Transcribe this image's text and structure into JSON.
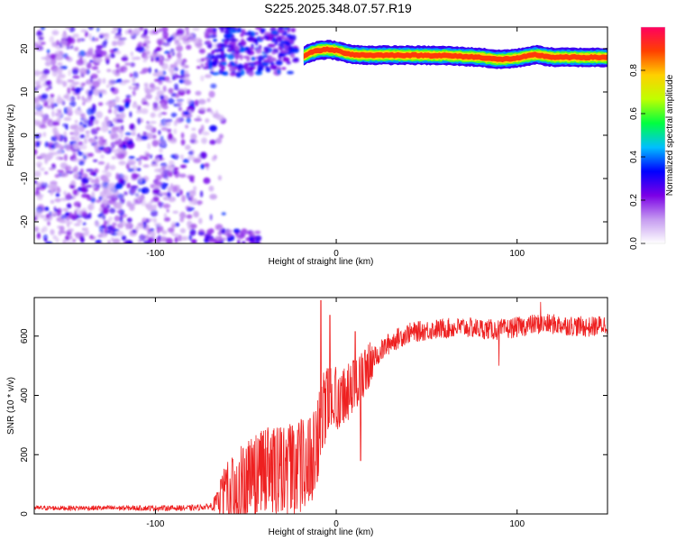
{
  "title": "S225.2025.348.07.57.R19",
  "chart_data": [
    {
      "type": "heatmap",
      "name": "spectrogram",
      "xlabel": "Height of straight line (km)",
      "ylabel": "Frequency (Hz)",
      "xlim": [
        -167,
        150
      ],
      "ylim": [
        -25,
        25
      ],
      "x_ticks": [
        -100,
        0,
        100
      ],
      "x_tick_labels": [
        "-100",
        "0",
        "100"
      ],
      "y_ticks": [
        -20,
        -10,
        0,
        10,
        20
      ],
      "y_tick_labels": [
        "-20",
        "-10",
        "0",
        "10",
        "20"
      ],
      "ridge": {
        "description_points_x": [
          -18,
          -15,
          -10,
          -5,
          0,
          5,
          10,
          20,
          40,
          60,
          80,
          90,
          100,
          110,
          120,
          150
        ],
        "description_points_y": [
          18.3,
          19.0,
          19.6,
          19.8,
          19.6,
          19.0,
          18.6,
          18.5,
          18.5,
          18.4,
          18.0,
          17.5,
          17.8,
          18.6,
          18.0,
          18.0
        ]
      },
      "colorbar": {
        "label": "Normalized spectral amplitude",
        "range": [
          0,
          1
        ],
        "ticks": [
          0.0,
          0.2,
          0.4,
          0.6,
          0.8
        ],
        "tick_labels": [
          "0.0",
          "0.2",
          "0.4",
          "0.6",
          "0.8"
        ],
        "colors": [
          "#ffffff",
          "#c59bf0",
          "#7b00e6",
          "#0000ff",
          "#00bfff",
          "#00ff40",
          "#bfff00",
          "#ffd000",
          "#ff4000",
          "#ff0060"
        ]
      }
    },
    {
      "type": "line",
      "name": "snr",
      "xlabel": "Height of straight line (km)",
      "ylabel": "SNR (10 * v/v)",
      "xlim": [
        -167,
        150
      ],
      "ylim": [
        0,
        730
      ],
      "x_ticks": [
        -100,
        0,
        100
      ],
      "x_tick_labels": [
        "-100",
        "0",
        "100"
      ],
      "y_ticks": [
        0,
        200,
        400,
        600
      ],
      "y_tick_labels": [
        "0",
        "200",
        "400",
        "600"
      ],
      "line_color": "#ee2020",
      "trend": {
        "x": [
          -167,
          -80,
          -70,
          -60,
          -50,
          -40,
          -30,
          -20,
          -12,
          -8,
          -5,
          0,
          5,
          10,
          15,
          20,
          25,
          30,
          40,
          50,
          60,
          70,
          80,
          90,
          100,
          110,
          120,
          130,
          140,
          150
        ],
        "y": [
          20,
          20,
          25,
          60,
          110,
          150,
          150,
          160,
          200,
          330,
          380,
          390,
          400,
          440,
          470,
          520,
          550,
          580,
          610,
          620,
          625,
          630,
          625,
          620,
          630,
          640,
          640,
          635,
          630,
          640
        ]
      },
      "noise": {
        "x": [
          -167,
          -70,
          -60,
          -20,
          -10,
          0,
          20,
          40,
          150
        ],
        "amp": [
          8,
          10,
          70,
          90,
          80,
          60,
          40,
          35,
          35
        ]
      },
      "spikes": [
        {
          "x": -8.5,
          "y": 720
        },
        {
          "x": -3.5,
          "y": 670
        },
        {
          "x": 10.5,
          "y": 615
        },
        {
          "x": 13.5,
          "y": 180
        },
        {
          "x": 90,
          "y": 500
        },
        {
          "x": 113,
          "y": 715
        }
      ]
    }
  ]
}
